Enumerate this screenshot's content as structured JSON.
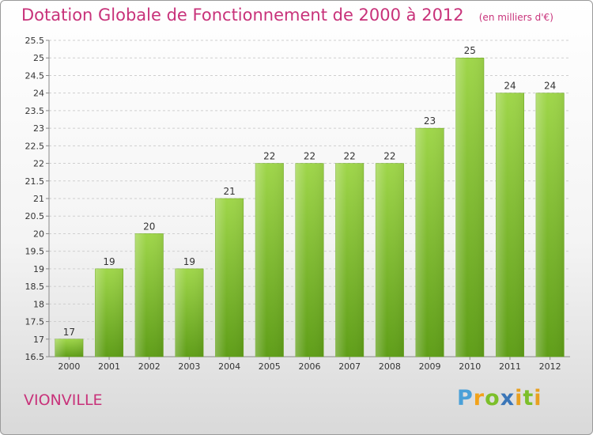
{
  "header": {
    "title": "Dotation Globale de Fonctionnement de 2000 à 2012",
    "unit": "(en milliers d'€)"
  },
  "commune": "VIONVILLE",
  "logo": {
    "letters": [
      "P",
      "r",
      "o",
      "x",
      "i",
      "t",
      "i"
    ]
  },
  "chart_data": {
    "type": "bar",
    "title": "Dotation Globale de Fonctionnement de 2000 à 2012",
    "xlabel": "",
    "ylabel": "",
    "categories": [
      "2000",
      "2001",
      "2002",
      "2003",
      "2004",
      "2005",
      "2006",
      "2007",
      "2008",
      "2009",
      "2010",
      "2011",
      "2012"
    ],
    "values": [
      17,
      19,
      20,
      19,
      21,
      22,
      22,
      22,
      22,
      23,
      25,
      24,
      24
    ],
    "data_labels": [
      "17",
      "19",
      "20",
      "19",
      "21",
      "22",
      "22",
      "22",
      "22",
      "23",
      "25",
      "24",
      "24"
    ],
    "ylim": [
      16.5,
      25.5
    ],
    "yticks": [
      "16.5",
      "17",
      "17.5",
      "18",
      "18.5",
      "19",
      "19.5",
      "20",
      "20.5",
      "21",
      "21.5",
      "22",
      "22.5",
      "23",
      "23.5",
      "24",
      "24.5",
      "25",
      "25.5"
    ],
    "grid": "horizontal dashed",
    "bar_color": "#7fbf2e",
    "bar_highlight": "#9fd64a"
  }
}
